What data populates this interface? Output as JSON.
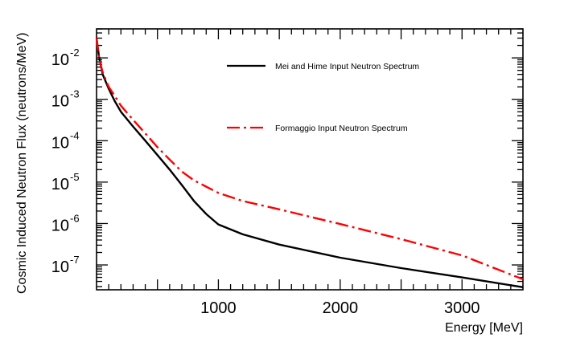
{
  "chart_data": {
    "type": "line",
    "title": "",
    "xlabel": "Energy [MeV]",
    "ylabel": "Cosmic Induced Neutron Flux (neutrons/MeV)",
    "xlim": [
      0,
      3500
    ],
    "ylim_log10": [
      -7.6,
      -1.3
    ],
    "yscale": "log",
    "x_ticks": [
      {
        "value": 1000,
        "label": "1000"
      },
      {
        "value": 2000,
        "label": "2000"
      },
      {
        "value": 3000,
        "label": "3000"
      }
    ],
    "y_ticks": [
      {
        "exp": -2,
        "base": "10",
        "sup": "-2"
      },
      {
        "exp": -3,
        "base": "10",
        "sup": "-3"
      },
      {
        "exp": -4,
        "base": "10",
        "sup": "-4"
      },
      {
        "exp": -5,
        "base": "10",
        "sup": "-5"
      },
      {
        "exp": -6,
        "base": "10",
        "sup": "-6"
      },
      {
        "exp": -7,
        "base": "10",
        "sup": "-7"
      }
    ],
    "series": [
      {
        "name": "Mei and Hime Input Neutron Spectrum",
        "color": "#000000",
        "dash": "solid",
        "x": [
          0,
          20,
          50,
          100,
          150,
          200,
          300,
          400,
          500,
          600,
          700,
          800,
          900,
          1000,
          1200,
          1500,
          2000,
          2500,
          3000,
          3500
        ],
        "y": [
          0.03,
          0.011,
          0.004,
          0.0018,
          0.0009,
          0.0005,
          0.00022,
          0.0001,
          4.5e-05,
          2e-05,
          8.5e-06,
          3.5e-06,
          1.7e-06,
          9.5e-07,
          5.5e-07,
          3.1e-07,
          1.5e-07,
          8.4e-08,
          5e-08,
          2.9e-08
        ]
      },
      {
        "name": "Formaggio Input Neutron Spectrum",
        "color": "#ff0000",
        "dash": "dashdot",
        "x": [
          0,
          20,
          50,
          100,
          150,
          200,
          300,
          400,
          500,
          600,
          700,
          800,
          1000,
          1200,
          1500,
          2000,
          2500,
          3000,
          3500
        ],
        "y": [
          0.03,
          0.01,
          0.0045,
          0.002,
          0.0012,
          0.0007,
          0.00032,
          0.00015,
          7e-05,
          3.5e-05,
          1.8e-05,
          1.1e-05,
          5.5e-06,
          3.5e-06,
          2.2e-06,
          9.7e-07,
          4.2e-07,
          1.7e-07,
          4.5e-08
        ]
      }
    ],
    "legend": {
      "position": "top-right",
      "entries": [
        {
          "label": "Mei and Hime Input Neutron Spectrum",
          "color": "#000000",
          "dash": "solid"
        },
        {
          "label": "Formaggio Input Neutron Spectrum",
          "color": "#ff0000",
          "dash": "dashdot"
        }
      ]
    }
  }
}
